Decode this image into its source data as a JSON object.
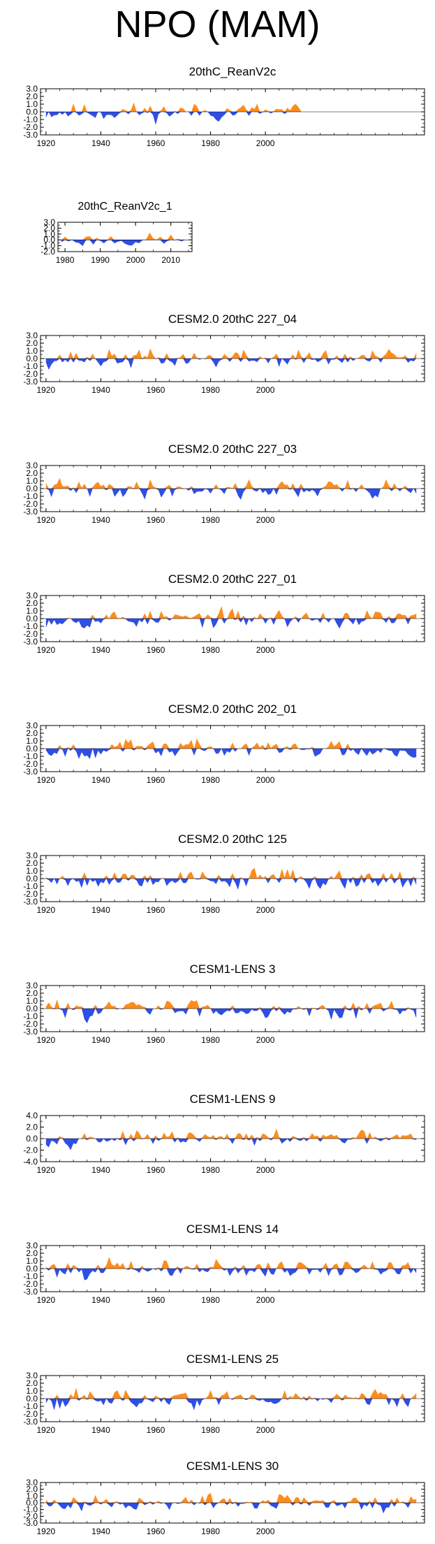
{
  "figure_title": "NPO (MAM)",
  "colors": {
    "positive": "#ff8c1a",
    "negative": "#2e4ee6",
    "axis": "#000000"
  },
  "chart_data": [
    {
      "type": "area",
      "title": "20thC_ReanV2c",
      "xlim": [
        1918,
        2058
      ],
      "ylim": [
        -3,
        3
      ],
      "yticks": [
        "3.0",
        "2.0",
        "1.0",
        "0.0",
        "-1.0",
        "-2.0",
        "-3.0"
      ],
      "yticks_values": [
        3,
        2,
        1,
        0,
        -1,
        -2,
        -3
      ],
      "xticks": [
        "1920",
        "1940",
        "1960",
        "1980",
        "2000"
      ],
      "xticks_values": [
        1920,
        1940,
        1960,
        1980,
        2000
      ],
      "x_range": [
        1920,
        2013
      ],
      "seed": 11,
      "amp": 1.0
    },
    {
      "type": "area",
      "title": "20thC_ReanV2c_1",
      "xlim": [
        1978,
        2016
      ],
      "ylim": [
        -2,
        3
      ],
      "yticks": [
        "3.0",
        "2.0",
        "1.0",
        "0.0",
        "-1.0",
        "-2.0"
      ],
      "yticks_values": [
        3,
        2,
        1,
        0,
        -1,
        -2
      ],
      "xticks": [
        "1980",
        "1990",
        "2000",
        "2010"
      ],
      "xticks_values": [
        1980,
        1990,
        2000,
        2010
      ],
      "x_range": [
        1979,
        2014
      ],
      "seed": 23,
      "amp": 1.0
    },
    {
      "type": "area",
      "title": "CESM2.0 20thC 227_04",
      "xlim": [
        1918,
        2058
      ],
      "ylim": [
        -3,
        3
      ],
      "yticks": [
        "3.0",
        "2.0",
        "1.0",
        "0.0",
        "-1.0",
        "-2.0",
        "-3.0"
      ],
      "yticks_values": [
        3,
        2,
        1,
        0,
        -1,
        -2,
        -3
      ],
      "xticks": [
        "1920",
        "1940",
        "1960",
        "1980",
        "2000"
      ],
      "xticks_values": [
        1920,
        1940,
        1960,
        1980,
        2000
      ],
      "x_range": [
        1920,
        2055
      ],
      "seed": 37,
      "amp": 1.0
    },
    {
      "type": "area",
      "title": "CESM2.0 20thC 227_03",
      "xlim": [
        1918,
        2058
      ],
      "ylim": [
        -3,
        3
      ],
      "yticks": [
        "3.0",
        "2.0",
        "1.0",
        "0.0",
        "-1.0",
        "-2.0",
        "-3.0"
      ],
      "yticks_values": [
        3,
        2,
        1,
        0,
        -1,
        -2,
        -3
      ],
      "xticks": [
        "1920",
        "1940",
        "1960",
        "1980",
        "2000"
      ],
      "xticks_values": [
        1920,
        1940,
        1960,
        1980,
        2000
      ],
      "x_range": [
        1920,
        2055
      ],
      "seed": 41,
      "amp": 1.0
    },
    {
      "type": "area",
      "title": "CESM2.0 20thC 227_01",
      "xlim": [
        1918,
        2058
      ],
      "ylim": [
        -3,
        3
      ],
      "yticks": [
        "3.0",
        "2.0",
        "1.0",
        "0.0",
        "-1.0",
        "-2.0",
        "-3.0"
      ],
      "yticks_values": [
        3,
        2,
        1,
        0,
        -1,
        -2,
        -3
      ],
      "xticks": [
        "1920",
        "1940",
        "1960",
        "1980",
        "2000"
      ],
      "xticks_values": [
        1920,
        1940,
        1960,
        1980,
        2000
      ],
      "x_range": [
        1920,
        2055
      ],
      "seed": 53,
      "amp": 1.0
    },
    {
      "type": "area",
      "title": "CESM2.0 20thC 202_01",
      "xlim": [
        1918,
        2058
      ],
      "ylim": [
        -3,
        3
      ],
      "yticks": [
        "3.0",
        "2.0",
        "1.0",
        "0.0",
        "-1.0",
        "-2.0",
        "-3.0"
      ],
      "yticks_values": [
        3,
        2,
        1,
        0,
        -1,
        -2,
        -3
      ],
      "xticks": [
        "1920",
        "1940",
        "1960",
        "1980",
        "2000"
      ],
      "xticks_values": [
        1920,
        1940,
        1960,
        1980,
        2000
      ],
      "x_range": [
        1920,
        2055
      ],
      "seed": 67,
      "amp": 1.0
    },
    {
      "type": "area",
      "title": "CESM2.0 20thC 125",
      "xlim": [
        1918,
        2058
      ],
      "ylim": [
        -3,
        3
      ],
      "yticks": [
        "3.0",
        "2.0",
        "1.0",
        "0.0",
        "-1.0",
        "-2.0",
        "-3.0"
      ],
      "yticks_values": [
        3,
        2,
        1,
        0,
        -1,
        -2,
        -3
      ],
      "xticks": [
        "1920",
        "1940",
        "1960",
        "1980",
        "2000"
      ],
      "xticks_values": [
        1920,
        1940,
        1960,
        1980,
        2000
      ],
      "x_range": [
        1920,
        2055
      ],
      "seed": 79,
      "amp": 1.1
    },
    {
      "type": "area",
      "title": "CESM1-LENS 3",
      "xlim": [
        1918,
        2058
      ],
      "ylim": [
        -3,
        3
      ],
      "yticks": [
        "3.0",
        "2.0",
        "1.0",
        "0.0",
        "-1.0",
        "-2.0",
        "-3.0"
      ],
      "yticks_values": [
        3,
        2,
        1,
        0,
        -1,
        -2,
        -3
      ],
      "xticks": [
        "1920",
        "1940",
        "1960",
        "1980",
        "2000"
      ],
      "xticks_values": [
        1920,
        1940,
        1960,
        1980,
        2000
      ],
      "x_range": [
        1920,
        2055
      ],
      "seed": 83,
      "amp": 1.0
    },
    {
      "type": "area",
      "title": "CESM1-LENS 9",
      "xlim": [
        1918,
        2058
      ],
      "ylim": [
        -4,
        4
      ],
      "yticks": [
        "4.0",
        "2.0",
        "0.0",
        "-2.0",
        "-4.0"
      ],
      "yticks_values": [
        4,
        2,
        0,
        -2,
        -4
      ],
      "xticks": [
        "1920",
        "1940",
        "1960",
        "1980",
        "2000"
      ],
      "xticks_values": [
        1920,
        1940,
        1960,
        1980,
        2000
      ],
      "x_range": [
        1920,
        2055
      ],
      "seed": 97,
      "amp": 1.0
    },
    {
      "type": "area",
      "title": "CESM1-LENS 14",
      "xlim": [
        1918,
        2058
      ],
      "ylim": [
        -3,
        3
      ],
      "yticks": [
        "3.0",
        "2.0",
        "1.0",
        "0.0",
        "-1.0",
        "-2.0",
        "-3.0"
      ],
      "yticks_values": [
        3,
        2,
        1,
        0,
        -1,
        -2,
        -3
      ],
      "xticks": [
        "1920",
        "1940",
        "1960",
        "1980",
        "2000"
      ],
      "xticks_values": [
        1920,
        1940,
        1960,
        1980,
        2000
      ],
      "x_range": [
        1920,
        2055
      ],
      "seed": 101,
      "amp": 1.0
    },
    {
      "type": "area",
      "title": "CESM1-LENS 25",
      "xlim": [
        1918,
        2058
      ],
      "ylim": [
        -3,
        3
      ],
      "yticks": [
        "3.0",
        "2.0",
        "1.0",
        "0.0",
        "-1.0",
        "-2.0",
        "-3.0"
      ],
      "yticks_values": [
        3,
        2,
        1,
        0,
        -1,
        -2,
        -3
      ],
      "xticks": [
        "1920",
        "1940",
        "1960",
        "1980",
        "2000"
      ],
      "xticks_values": [
        1920,
        1940,
        1960,
        1980,
        2000
      ],
      "x_range": [
        1920,
        2055
      ],
      "seed": 113,
      "amp": 1.0
    },
    {
      "type": "area",
      "title": "CESM1-LENS 30",
      "xlim": [
        1918,
        2058
      ],
      "ylim": [
        -3,
        3
      ],
      "yticks": [
        "3.0",
        "2.0",
        "1.0",
        "0.0",
        "-1.0",
        "-2.0",
        "-3.0"
      ],
      "yticks_values": [
        3,
        2,
        1,
        0,
        -1,
        -2,
        -3
      ],
      "xticks": [
        "1920",
        "1940",
        "1960",
        "1980",
        "2000"
      ],
      "xticks_values": [
        1920,
        1940,
        1960,
        1980,
        2000
      ],
      "x_range": [
        1920,
        2055
      ],
      "seed": 127,
      "amp": 1.0
    }
  ]
}
